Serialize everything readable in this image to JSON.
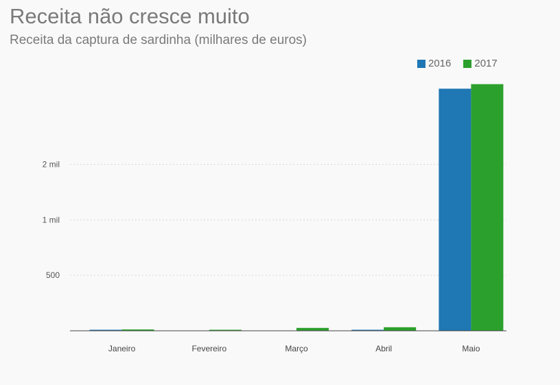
{
  "chart_data": {
    "type": "bar",
    "title": "Receita não cresce muito",
    "subtitle": "Receita da captura de sardinha (milhares de euros)",
    "categories": [
      "Janeiro",
      "Fevereiro",
      "Março",
      "Abril",
      "Maio"
    ],
    "series": [
      {
        "name": "2016",
        "color": "#1f77b4",
        "values": [
          1,
          0,
          0,
          3,
          2182
        ]
      },
      {
        "name": "2017",
        "color": "#2ca02c",
        "values": [
          12,
          4,
          26,
          32,
          2223
        ]
      }
    ],
    "yticks": [
      {
        "value": 500,
        "label": "500"
      },
      {
        "value": 1000,
        "label": "1 mil"
      },
      {
        "value": 1500,
        "label": "2 mil"
      }
    ],
    "ylim": [
      0,
      2400
    ],
    "grid": true,
    "legend_position": "top-right"
  }
}
